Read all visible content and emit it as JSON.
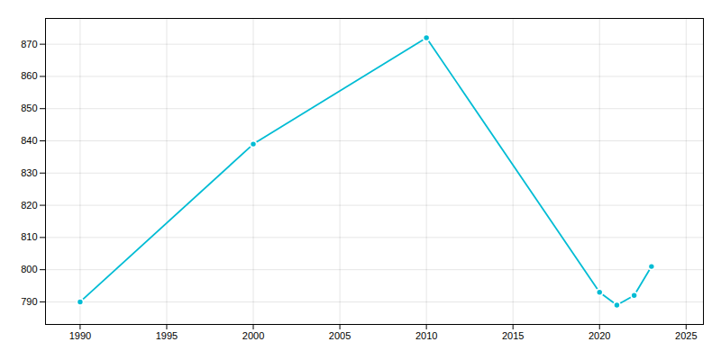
{
  "chart_data": {
    "type": "line",
    "x": [
      1990,
      2000,
      2010,
      2020,
      2021,
      2022,
      2023
    ],
    "values": [
      790,
      839,
      872,
      793,
      789,
      792,
      801
    ],
    "color": "#00BCD4",
    "marker": "circle",
    "xlim": [
      1988,
      2026
    ],
    "ylim": [
      783,
      878
    ],
    "xticks": [
      1990,
      1995,
      2000,
      2005,
      2010,
      2015,
      2020,
      2025
    ],
    "yticks": [
      790,
      800,
      810,
      820,
      830,
      840,
      850,
      860,
      870
    ],
    "grid": true
  }
}
